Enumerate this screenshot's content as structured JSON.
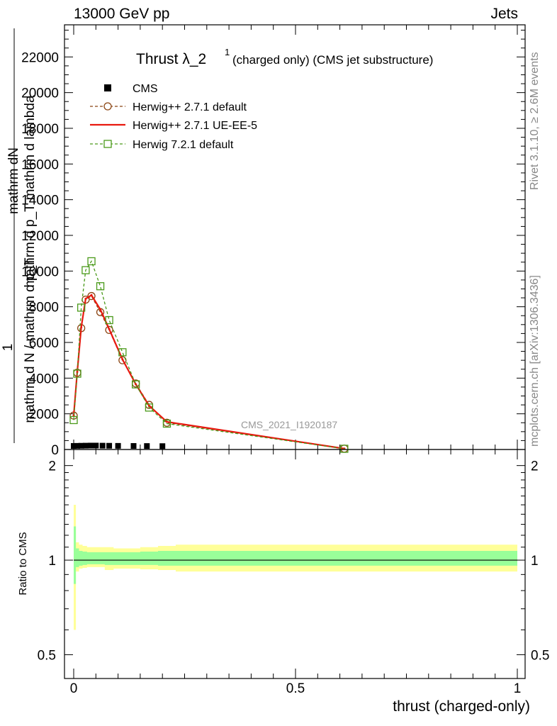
{
  "header": {
    "left": "13000 GeV pp",
    "right": "Jets"
  },
  "side_labels": {
    "rivet": "Rivet 3.1.10, ≥ 2.6M events",
    "mcplots": "mcplots.cern.ch [arXiv:1306.3436]"
  },
  "chart_data": [
    {
      "type": "line",
      "title": "Thrust λ_2",
      "title_sup": "1",
      "subtitle": "(charged only) (CMS jet substructure)",
      "ylabel": "1 / mathrm d N / mathrm d p_T mathrm d N / mathrm d lambda",
      "ylabel_lines": [
        "mathrm dN",
        "mathrm d p_T mathrm d lambda",
        "1",
        "mathrm d N / mathrm d p_T"
      ],
      "xlabel": "thrust (charged-only)",
      "watermark": "CMS_2021_I1920187",
      "xlim": [
        -0.02,
        1.02
      ],
      "ylim": [
        0,
        23800
      ],
      "yticks": [
        0,
        2000,
        4000,
        6000,
        8000,
        10000,
        12000,
        14000,
        16000,
        18000,
        20000,
        22000
      ],
      "ytick_labels": [
        "0",
        "2000",
        "4000",
        "6000",
        "8000",
        "10000",
        "12000",
        "14000",
        "16000",
        "18000",
        "20000",
        "22000"
      ],
      "legend_position": "top-left",
      "series": [
        {
          "name": "CMS",
          "style": "markers",
          "color": "#000000",
          "x": [
            0.0,
            0.008,
            0.017,
            0.027,
            0.038,
            0.05,
            0.065,
            0.08,
            0.1,
            0.135,
            0.165,
            0.2
          ],
          "values": [
            40,
            45,
            50,
            55,
            60,
            60,
            55,
            50,
            45,
            40,
            35,
            30
          ]
        },
        {
          "name": "Herwig++ 2.7.1 default",
          "style": "dashed-circle",
          "color": "#8B4513",
          "x": [
            0.0,
            0.008,
            0.017,
            0.027,
            0.04,
            0.06,
            0.08,
            0.11,
            0.14,
            0.17,
            0.21,
            0.61
          ],
          "values": [
            1900,
            4300,
            6800,
            8400,
            8600,
            7700,
            6700,
            5000,
            3700,
            2500,
            1500,
            50
          ]
        },
        {
          "name": "Herwig++ 2.7.1 UE-EE-5",
          "style": "solid",
          "color": "#e8190f",
          "x": [
            0.0,
            0.008,
            0.017,
            0.027,
            0.04,
            0.06,
            0.08,
            0.11,
            0.14,
            0.17,
            0.21,
            0.61
          ],
          "values": [
            1900,
            4350,
            6850,
            8450,
            8650,
            7850,
            6750,
            5050,
            3650,
            2450,
            1550,
            50
          ]
        },
        {
          "name": "Herwig 7.2.1 default",
          "style": "dashed-square",
          "color": "#4a9a1a",
          "x": [
            0.0,
            0.008,
            0.017,
            0.027,
            0.04,
            0.06,
            0.08,
            0.11,
            0.14,
            0.17,
            0.21,
            0.61
          ],
          "values": [
            1650,
            4250,
            7950,
            10050,
            10550,
            9150,
            7250,
            5450,
            3650,
            2350,
            1450,
            40
          ]
        }
      ]
    },
    {
      "type": "area",
      "ylabel": "Ratio to CMS",
      "xlabel": "thrust (charged-only)",
      "xlim": [
        -0.02,
        1.02
      ],
      "ylim": [
        0.42,
        2.25
      ],
      "yticks": [
        0.5,
        1,
        2
      ],
      "ytick_labels": [
        "0.5",
        "1",
        "2"
      ],
      "xticks": [
        0,
        0.5,
        1
      ],
      "xtick_labels": [
        "0",
        "0.5",
        "1"
      ],
      "bands": {
        "x": [
          0.0,
          0.005,
          0.012,
          0.02,
          0.03,
          0.045,
          0.07,
          0.09,
          0.12,
          0.15,
          0.19,
          0.23,
          1.0
        ],
        "stat_sys_outer_lo": [
          0.6,
          0.92,
          0.94,
          0.945,
          0.95,
          0.95,
          0.93,
          0.94,
          0.94,
          0.935,
          0.93,
          0.92,
          0.92
        ],
        "stat_sys_outer_hi": [
          1.5,
          1.14,
          1.12,
          1.11,
          1.1,
          1.1,
          1.1,
          1.09,
          1.09,
          1.1,
          1.11,
          1.12,
          1.12
        ],
        "inner_lo": [
          0.84,
          0.95,
          0.96,
          0.965,
          0.97,
          0.97,
          0.965,
          0.965,
          0.965,
          0.965,
          0.96,
          0.96,
          0.96
        ],
        "inner_hi": [
          1.28,
          1.09,
          1.07,
          1.065,
          1.06,
          1.06,
          1.06,
          1.06,
          1.06,
          1.065,
          1.07,
          1.07,
          1.07
        ],
        "outer_color": "#ffff99",
        "inner_color": "#99ff99"
      }
    }
  ]
}
